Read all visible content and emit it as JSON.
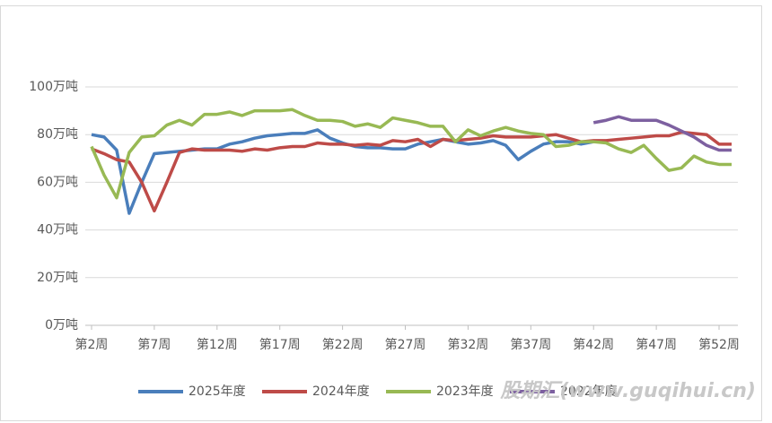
{
  "chart_data": {
    "type": "line",
    "watermark": "股期汇(www.guqihui.cn)",
    "x": [
      2,
      3,
      4,
      5,
      6,
      7,
      8,
      9,
      10,
      11,
      12,
      13,
      14,
      15,
      16,
      17,
      18,
      19,
      20,
      21,
      22,
      23,
      24,
      25,
      26,
      27,
      28,
      29,
      30,
      31,
      32,
      33,
      34,
      35,
      36,
      37,
      38,
      39,
      40,
      41,
      42,
      43,
      44,
      45,
      46,
      47,
      48,
      49,
      50,
      51,
      52,
      53
    ],
    "xlim": [
      1.5,
      53.5
    ],
    "xticks": [
      {
        "value": 2,
        "label": "第2周"
      },
      {
        "value": 7,
        "label": "第7周"
      },
      {
        "value": 12,
        "label": "第12周"
      },
      {
        "value": 17,
        "label": "第17周"
      },
      {
        "value": 22,
        "label": "第22周"
      },
      {
        "value": 27,
        "label": "第27周"
      },
      {
        "value": 32,
        "label": "第32周"
      },
      {
        "value": 37,
        "label": "第37周"
      },
      {
        "value": 42,
        "label": "第42周"
      },
      {
        "value": 47,
        "label": "第47周"
      },
      {
        "value": 52,
        "label": "第52周"
      }
    ],
    "ylim": [
      0,
      100
    ],
    "yticks": [
      {
        "value": 0,
        "label": "0万吨"
      },
      {
        "value": 20,
        "label": "20万吨"
      },
      {
        "value": 40,
        "label": "40万吨"
      },
      {
        "value": 60,
        "label": "60万吨"
      },
      {
        "value": 80,
        "label": "80万吨"
      },
      {
        "value": 100,
        "label": "100万吨"
      }
    ],
    "grid": true,
    "legend": "bottom",
    "series": [
      {
        "name": "2025年度",
        "color": "#4a7ebb",
        "values": [
          80,
          79,
          73.5,
          47,
          60,
          72,
          72.5,
          73,
          73.5,
          74,
          74,
          76,
          77,
          78.5,
          79.5,
          80,
          80.5,
          80.5,
          82,
          78.5,
          76.5,
          75,
          74.5,
          74.5,
          74,
          74,
          76,
          77,
          78,
          77,
          76,
          76.5,
          77.5,
          75.5,
          69.5,
          73,
          76,
          77,
          77,
          76,
          77,
          null,
          null,
          null,
          null,
          null,
          null,
          null,
          null,
          null,
          null,
          null
        ]
      },
      {
        "name": "2024年度",
        "color": "#be4b48",
        "values": [
          74,
          72,
          69.5,
          68.5,
          60,
          48,
          60,
          72.5,
          74,
          73.5,
          73.5,
          73.5,
          73,
          74,
          73.5,
          74.5,
          75,
          75,
          76.5,
          76,
          76,
          75.5,
          76,
          75.5,
          77.5,
          77,
          78,
          75,
          78,
          77.5,
          78,
          78.5,
          79.5,
          79,
          79,
          79,
          79.5,
          80,
          78.5,
          77,
          77.5,
          77.5,
          78,
          78.5,
          79,
          79.5,
          79.5,
          81,
          80.5,
          80,
          76,
          76
        ]
      },
      {
        "name": "2023年度",
        "color": "#98b954",
        "values": [
          75,
          63,
          53.5,
          72.5,
          79,
          79.5,
          84,
          86,
          84,
          88.5,
          88.5,
          89.5,
          88,
          90,
          90,
          90,
          90.5,
          88,
          86,
          86,
          85.5,
          83.5,
          84.5,
          83,
          87,
          86,
          85,
          83.5,
          83.5,
          77,
          82,
          79.5,
          81.5,
          83,
          81.5,
          80.5,
          80,
          75,
          75.5,
          77,
          77,
          76.5,
          74,
          72.5,
          75.5,
          70,
          65,
          66,
          71,
          68.5,
          67.5,
          67.5
        ]
      },
      {
        "name": "2022年度",
        "color": "#7d60a0",
        "values": [
          null,
          null,
          null,
          null,
          null,
          null,
          null,
          null,
          null,
          null,
          null,
          null,
          null,
          null,
          null,
          null,
          null,
          null,
          null,
          null,
          null,
          null,
          null,
          null,
          null,
          null,
          null,
          null,
          null,
          null,
          null,
          null,
          null,
          null,
          null,
          null,
          null,
          null,
          null,
          null,
          85,
          86,
          87.5,
          86,
          86,
          86,
          84,
          81.5,
          79,
          75.5,
          73.5,
          73.5
        ]
      }
    ]
  }
}
